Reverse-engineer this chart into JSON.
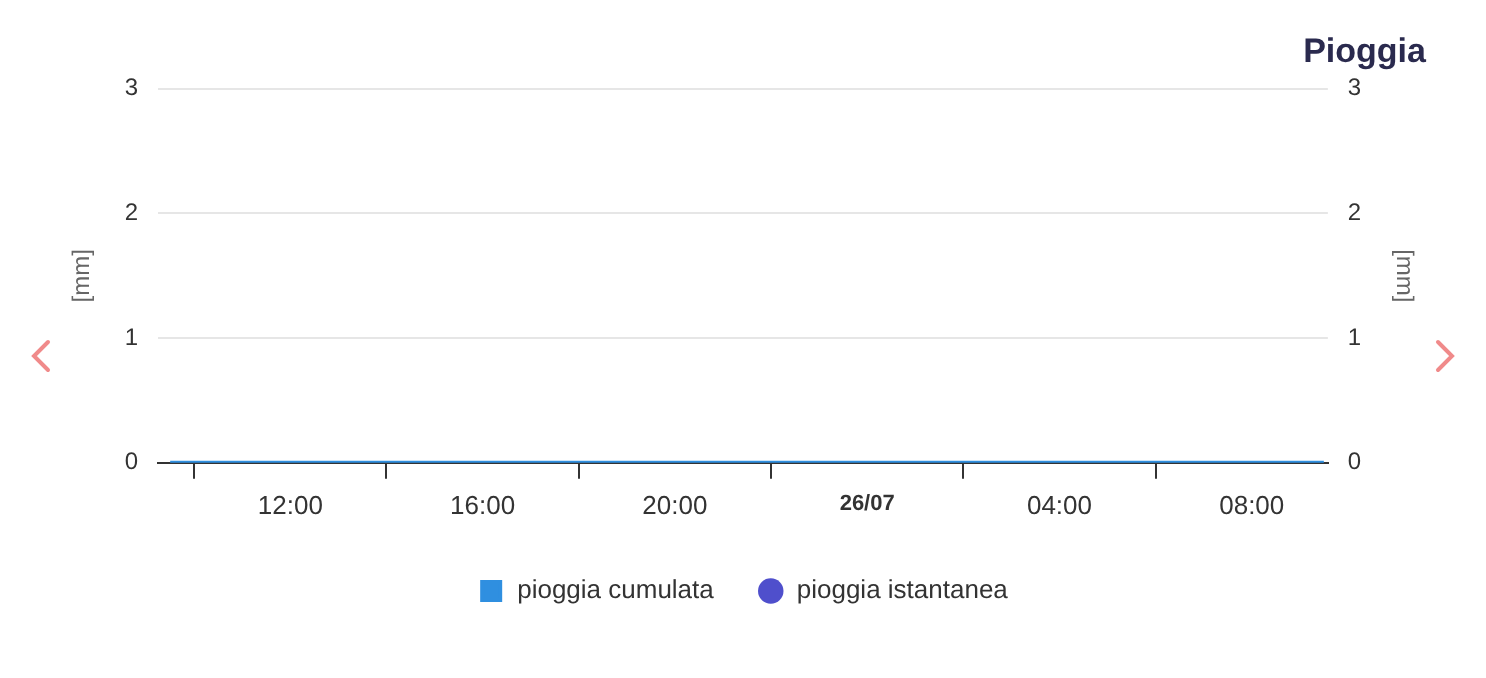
{
  "chart_data": {
    "type": "line",
    "title": "Pioggia",
    "ylabel": "[mm]",
    "y2label": "[mm]",
    "x": [
      "--07-25T09:30",
      "--07-26T09:30"
    ],
    "series": [
      {
        "name": "pioggia cumulata",
        "color": "#2f8fe0",
        "values": [
          0,
          0
        ]
      },
      {
        "name": "pioggia istantanea",
        "type": "bar",
        "color": "#4f4fcc",
        "values": [
          0,
          0
        ]
      }
    ],
    "xlim": [
      "--07-25T09:15",
      "--07-26T09:35"
    ],
    "xticks": [
      {
        "value": "--07-25T12:00",
        "label": "12:00"
      },
      {
        "value": "--07-25T16:00",
        "label": "16:00"
      },
      {
        "value": "--07-25T20:00",
        "label": "20:00"
      },
      {
        "value": "--07-26T00:00",
        "label": "26/07"
      },
      {
        "value": "--07-26T04:00",
        "label": "04:00"
      },
      {
        "value": "--07-26T08:00",
        "label": "08:00"
      }
    ],
    "ylim": [
      0,
      3
    ],
    "yticks": [
      0,
      1,
      2,
      3
    ],
    "y2lim": [
      0,
      3
    ],
    "y2ticks": [
      0,
      1,
      2,
      3
    ],
    "grid": "y",
    "legend": "bottom"
  }
}
